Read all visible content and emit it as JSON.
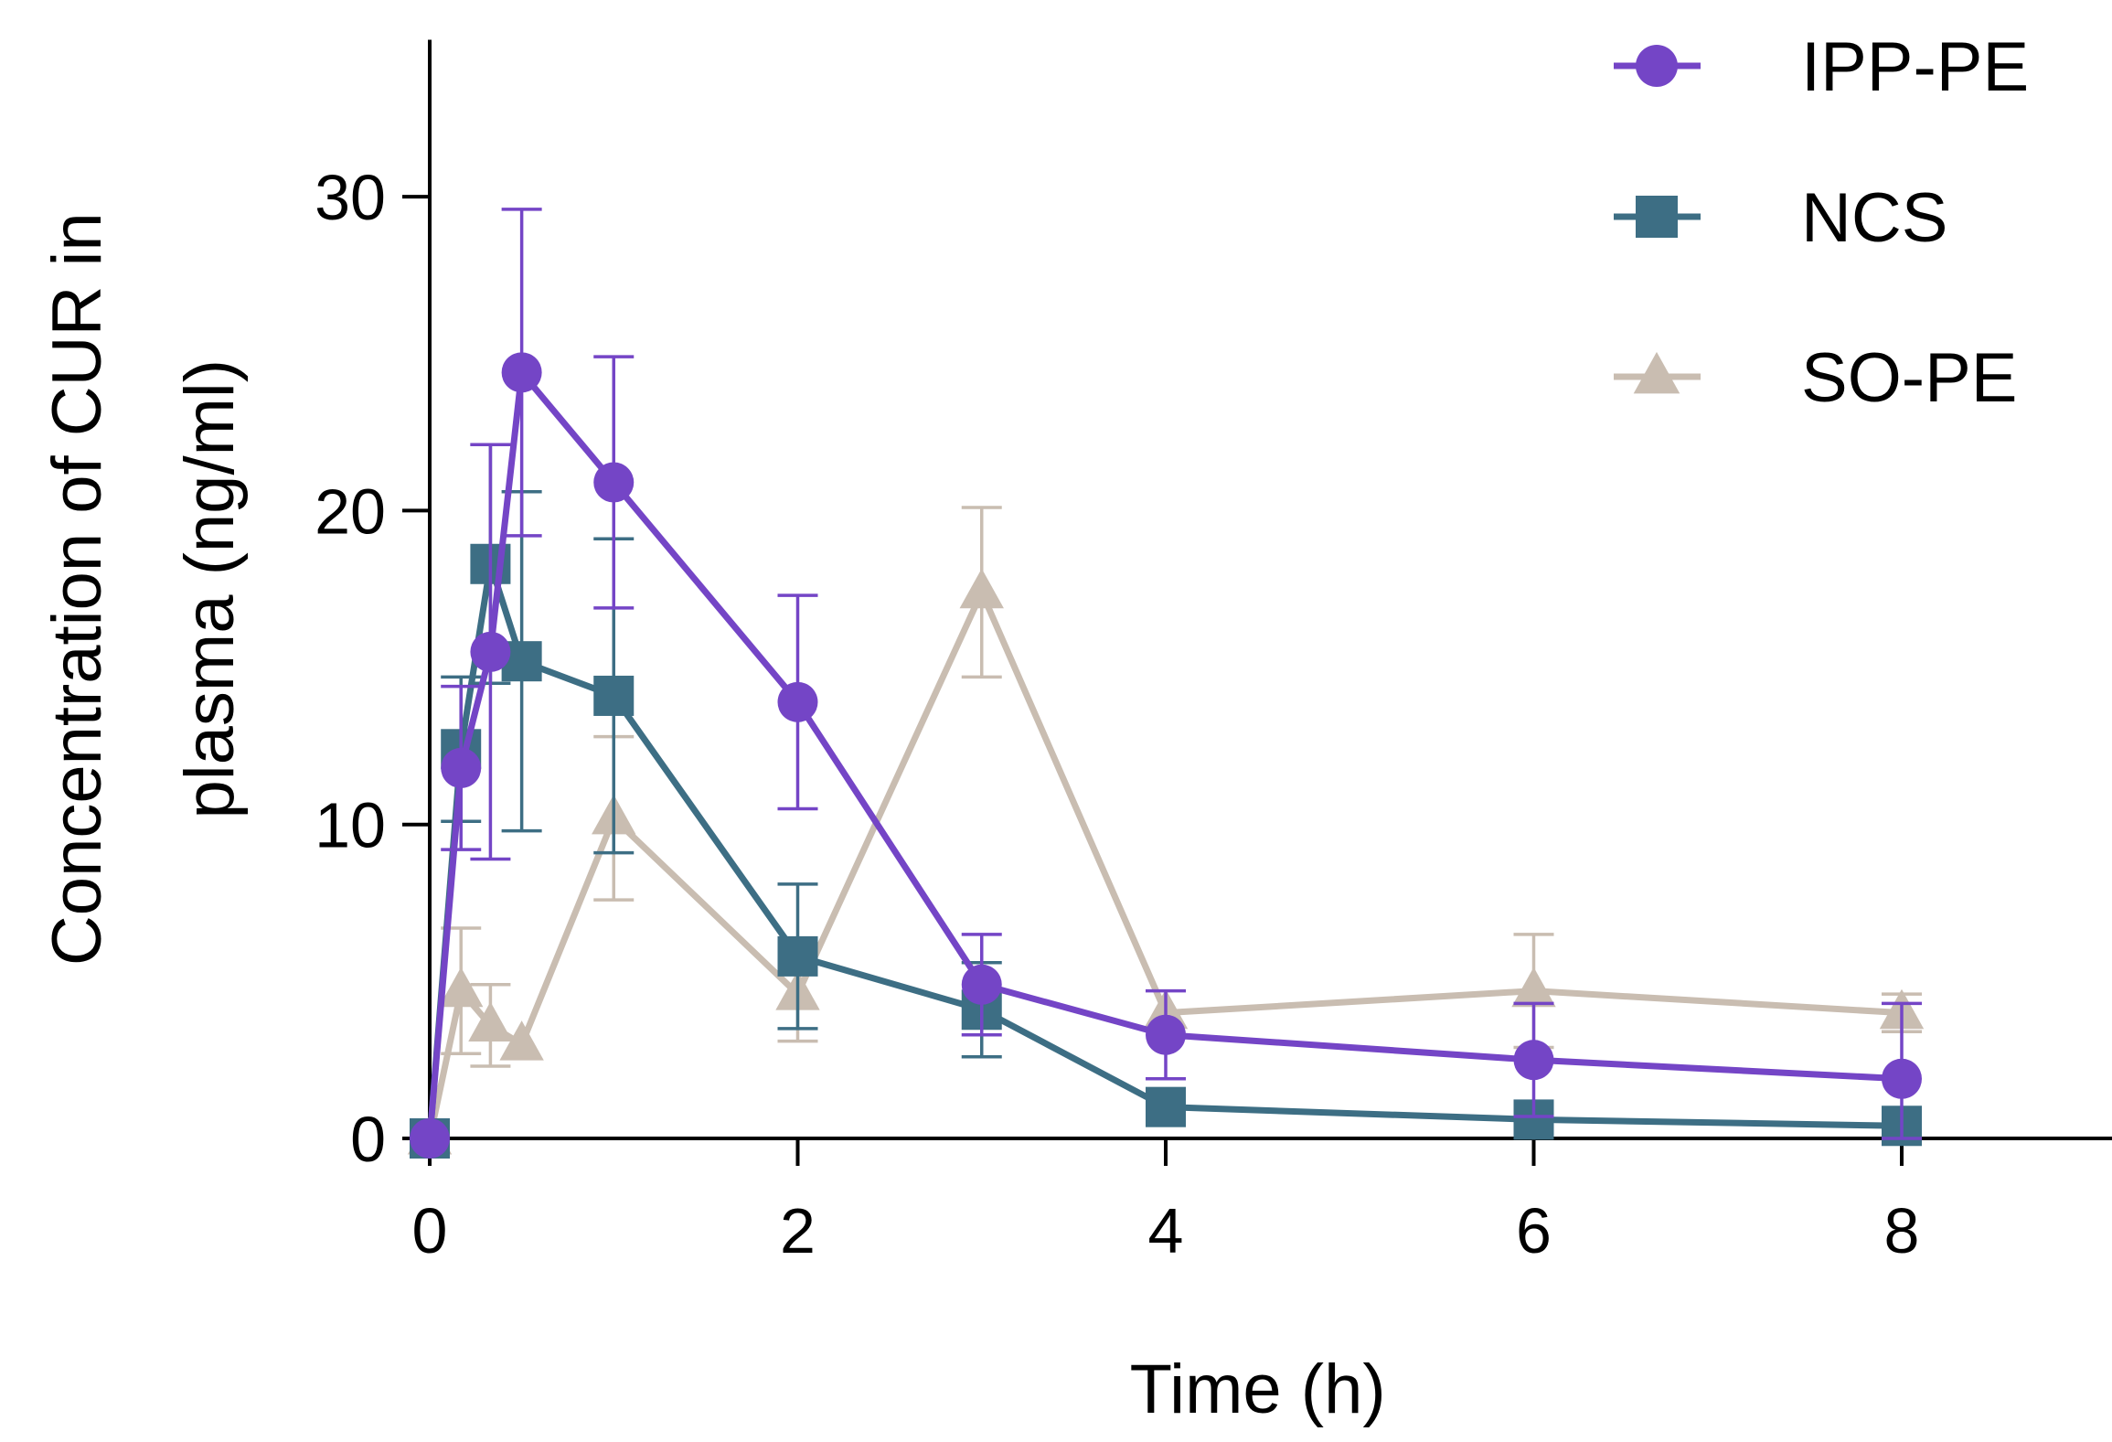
{
  "chart_data": {
    "type": "line",
    "title": "",
    "xlabel": "Time (h)",
    "ylabel_lines": [
      "Concentration of CUR in",
      "plasma (ng/ml)"
    ],
    "xlim": [
      0,
      9
    ],
    "ylim": [
      0,
      35
    ],
    "xticks": [
      0,
      2,
      4,
      6,
      8
    ],
    "yticks": [
      0,
      10,
      20,
      30
    ],
    "grid": false,
    "legend_position": "top-right",
    "series": [
      {
        "name": "IPP-PE",
        "color": "#7445c6",
        "marker": "circle",
        "x": [
          0,
          0.17,
          0.33,
          0.5,
          1,
          2,
          3,
          4,
          6,
          8
        ],
        "y": [
          0,
          11.8,
          15.5,
          24.4,
          20.9,
          13.9,
          4.9,
          3.3,
          2.5,
          1.9
        ],
        "err": [
          0,
          2.6,
          6.6,
          5.2,
          4.0,
          3.4,
          1.6,
          1.4,
          1.8,
          2.4
        ]
      },
      {
        "name": "NCS",
        "color": "#3d6e84",
        "marker": "square",
        "x": [
          0,
          0.17,
          0.33,
          0.5,
          1,
          2,
          3,
          4,
          6,
          8
        ],
        "y": [
          0,
          12.4,
          18.3,
          15.2,
          14.1,
          5.8,
          4.1,
          1.0,
          0.6,
          0.4
        ],
        "err": [
          0,
          2.3,
          3.8,
          5.4,
          5.0,
          2.3,
          1.5,
          0,
          0,
          0
        ]
      },
      {
        "name": "SO-PE",
        "color": "#c9bdb1",
        "marker": "triangle",
        "x": [
          0,
          0.17,
          0.33,
          0.5,
          1,
          2,
          3,
          4,
          6,
          8
        ],
        "y": [
          0,
          4.7,
          3.6,
          3.0,
          10.2,
          4.6,
          17.4,
          4.0,
          4.7,
          4.0
        ],
        "err": [
          0,
          2.0,
          1.3,
          0,
          2.6,
          1.5,
          2.7,
          0,
          1.8,
          0.6
        ]
      }
    ]
  }
}
